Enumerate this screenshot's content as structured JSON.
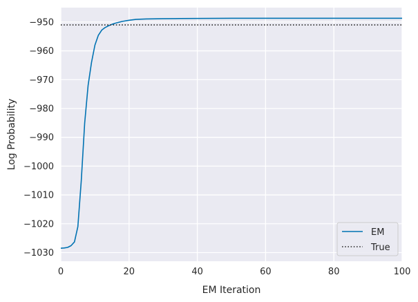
{
  "chart_data": {
    "type": "line",
    "xlabel": "EM Iteration",
    "ylabel": "Log Probability",
    "xlim": [
      0,
      100
    ],
    "ylim": [
      -1033,
      -945
    ],
    "xticks": [
      0,
      20,
      40,
      60,
      80,
      100
    ],
    "yticks": [
      -950,
      -960,
      -970,
      -980,
      -990,
      -1000,
      -1010,
      -1020,
      -1030
    ],
    "x_tick_labels": [
      "0",
      "20",
      "40",
      "60",
      "80",
      "100"
    ],
    "y_tick_labels": [
      "−950",
      "−960",
      "−970",
      "−980",
      "−990",
      "−1000",
      "−1010",
      "−1020",
      "−1030"
    ],
    "grid": true,
    "legend_position": "lower-right",
    "series": [
      {
        "name": "EM",
        "style": "solid",
        "color": "#0072b2",
        "x": [
          0,
          1,
          2,
          3,
          4,
          5,
          6,
          7,
          8,
          9,
          10,
          11,
          12,
          13,
          14,
          15,
          16,
          17,
          18,
          20,
          22,
          25,
          30,
          35,
          40,
          50,
          60,
          70,
          80,
          90,
          100
        ],
        "y": [
          -1028.5,
          -1028.4,
          -1028.2,
          -1027.6,
          -1026.3,
          -1021,
          -1005,
          -985,
          -972,
          -964,
          -958,
          -954.6,
          -952.8,
          -951.9,
          -951.3,
          -950.8,
          -950.4,
          -950.1,
          -949.8,
          -949.4,
          -949.1,
          -948.95,
          -948.85,
          -948.8,
          -948.75,
          -948.7,
          -948.7,
          -948.7,
          -948.7,
          -948.7,
          -948.7
        ]
      },
      {
        "name": "True",
        "style": "dotted",
        "color": "#262626",
        "x": [
          0,
          100
        ],
        "y": [
          -951,
          -951
        ]
      }
    ]
  },
  "colors": {
    "plot_background": "#eaeaf2",
    "grid": "#ffffff",
    "em_line": "#0072b2",
    "true_line": "#262626",
    "text": "#262626"
  }
}
